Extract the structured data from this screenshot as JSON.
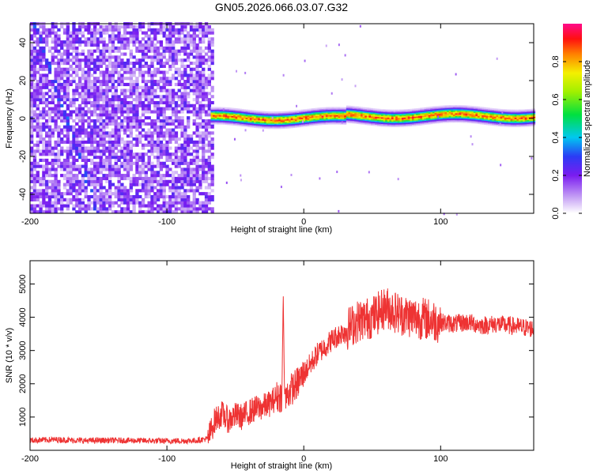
{
  "title": "GN05.2026.066.03.07.G32",
  "colors": {
    "snr_line": "#ee3333",
    "frame": "#000000",
    "background": "#ffffff"
  },
  "chart_data": [
    {
      "type": "heatmap",
      "name": "spectrogram",
      "xlabel": "Height of straight line (km)",
      "ylabel": "Frequency (Hz)",
      "xlim": [
        -200,
        168
      ],
      "ylim": [
        -50,
        50
      ],
      "xticks": [
        -200,
        -100,
        0,
        100
      ],
      "yticks": [
        -40,
        -20,
        0,
        20,
        40
      ],
      "noise_region_x": [
        -200,
        -68
      ],
      "ridge_start_x": -68,
      "ridge_frequency": 0,
      "ridge_amplitude": 0.95,
      "colorbar": {
        "label": "Normalized spectral amplitude",
        "range": [
          0.0,
          1.0
        ],
        "ticks": [
          0.0,
          0.2,
          0.4,
          0.6,
          0.8
        ],
        "tick_labels": [
          "0.0",
          "0.2",
          "0.4",
          "0.6",
          "0.8"
        ],
        "stops": [
          {
            "v": 0.0,
            "color": "#ffffff"
          },
          {
            "v": 0.08,
            "color": "#c9a6f5"
          },
          {
            "v": 0.2,
            "color": "#7a1cf0"
          },
          {
            "v": 0.3,
            "color": "#2b3cf5"
          },
          {
            "v": 0.4,
            "color": "#00c8f0"
          },
          {
            "v": 0.52,
            "color": "#00e040"
          },
          {
            "v": 0.64,
            "color": "#a0f000"
          },
          {
            "v": 0.74,
            "color": "#f4f000"
          },
          {
            "v": 0.84,
            "color": "#ff8000"
          },
          {
            "v": 0.92,
            "color": "#ff1010"
          },
          {
            "v": 1.0,
            "color": "#ff0a8a"
          }
        ]
      }
    },
    {
      "type": "line",
      "name": "snr",
      "xlabel": "Height of straight line (km)",
      "ylabel": "SNR (10 * v/v)",
      "xlim": [
        -200,
        168
      ],
      "ylim": [
        0,
        5700
      ],
      "xticks": [
        -200,
        -100,
        0,
        100
      ],
      "yticks": [
        1000,
        2000,
        3000,
        4000,
        5000
      ],
      "series": [
        {
          "name": "SNR",
          "x": [
            -200,
            -180,
            -160,
            -140,
            -120,
            -100,
            -80,
            -70,
            -65,
            -60,
            -55,
            -50,
            -45,
            -40,
            -35,
            -30,
            -25,
            -20,
            -16,
            -15,
            -14,
            -10,
            -5,
            0,
            5,
            10,
            20,
            30,
            40,
            50,
            60,
            70,
            80,
            90,
            100,
            110,
            120,
            130,
            140,
            150,
            160,
            168
          ],
          "y": [
            300,
            320,
            290,
            300,
            290,
            280,
            290,
            350,
            900,
            1100,
            900,
            1050,
            1000,
            1150,
            1250,
            1300,
            1400,
            1600,
            1650,
            4700,
            1500,
            1800,
            2000,
            2300,
            2600,
            2900,
            3300,
            3600,
            3900,
            4000,
            4300,
            4100,
            4000,
            3950,
            3850,
            3800,
            3850,
            3750,
            3800,
            3750,
            3700,
            3650
          ]
        }
      ],
      "noise": [
        {
          "from": -200,
          "to": -70,
          "amp": 90
        },
        {
          "from": -70,
          "to": -20,
          "amp": 400
        },
        {
          "from": -20,
          "to": 0,
          "amp": 500
        },
        {
          "from": 0,
          "to": 30,
          "amp": 350
        },
        {
          "from": 30,
          "to": 100,
          "amp": 650
        },
        {
          "from": 100,
          "to": 168,
          "amp": 280
        }
      ]
    }
  ]
}
